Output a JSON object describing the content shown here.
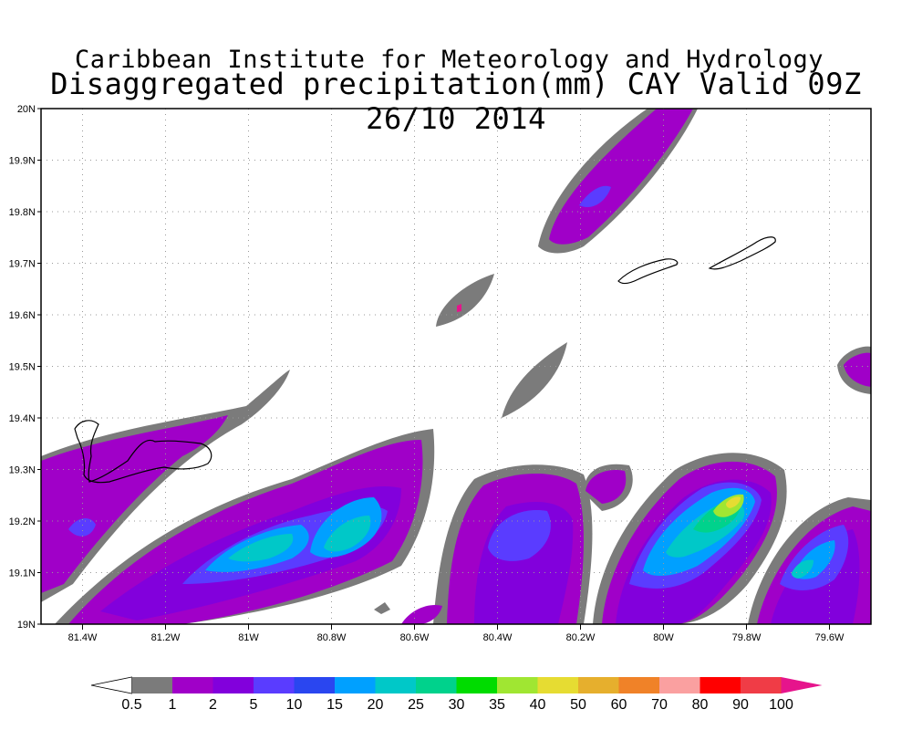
{
  "titles": {
    "line1": "Caribbean Institute for Meteorology and Hydrology",
    "line2": "Disaggregated precipitation(mm) CAY Valid 09Z 26/10 2014"
  },
  "map": {
    "lon_range": [
      -81.5,
      -79.5
    ],
    "lat_range": [
      19.0,
      20.0
    ],
    "lon_ticks": [
      "81.4W",
      "81.2W",
      "81W",
      "80.8W",
      "80.6W",
      "80.4W",
      "80.2W",
      "80W",
      "79.8W",
      "79.6W"
    ],
    "lat_ticks": [
      "19N",
      "19.1N",
      "19.2N",
      "19.3N",
      "19.4N",
      "19.5N",
      "19.6N",
      "19.7N",
      "19.8N",
      "19.9N",
      "20N"
    ],
    "grid": "dotted"
  },
  "colorbar": {
    "labels": [
      "0.5",
      "1",
      "2",
      "5",
      "10",
      "15",
      "20",
      "25",
      "30",
      "35",
      "40",
      "50",
      "60",
      "70",
      "80",
      "90",
      "100"
    ],
    "colors": [
      "#ffffff",
      "#7b7b7b",
      "#a000c8",
      "#8200dc",
      "#5a3cff",
      "#2a46f0",
      "#00a0ff",
      "#00c8c8",
      "#00d28c",
      "#00dc00",
      "#a0e632",
      "#e6dc32",
      "#e6af2d",
      "#f08228",
      "#faa0a0",
      "#ff0000",
      "#f03c46",
      "#e6148c"
    ]
  }
}
